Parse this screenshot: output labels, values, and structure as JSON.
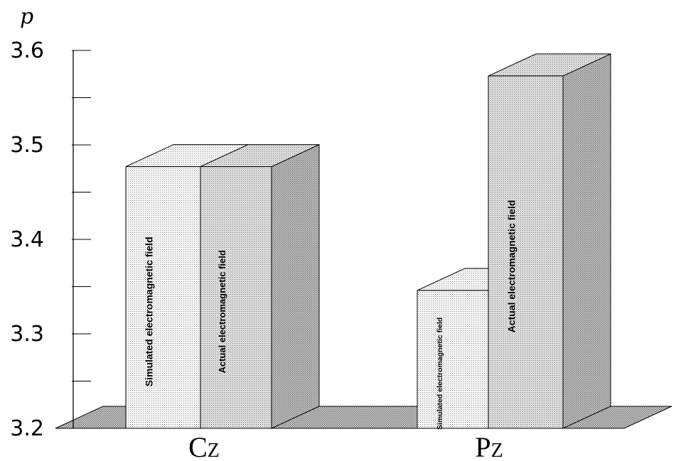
{
  "chart_data": {
    "type": "bar",
    "ylabel": "p",
    "ylim": [
      3.2,
      3.6
    ],
    "yticks": [
      "3.2",
      "3.3",
      "3.4",
      "3.5",
      "3.6"
    ],
    "categories": [
      {
        "main": "C",
        "sub": "Z"
      },
      {
        "main": "P",
        "sub": "Z"
      }
    ],
    "series": [
      {
        "name": "Simulated electromagnetic field",
        "values": [
          3.477,
          3.346
        ]
      },
      {
        "name": "Actual electromagnetic field",
        "values": [
          3.477,
          3.573
        ]
      }
    ],
    "grid": false,
    "style": "3d-bars"
  }
}
